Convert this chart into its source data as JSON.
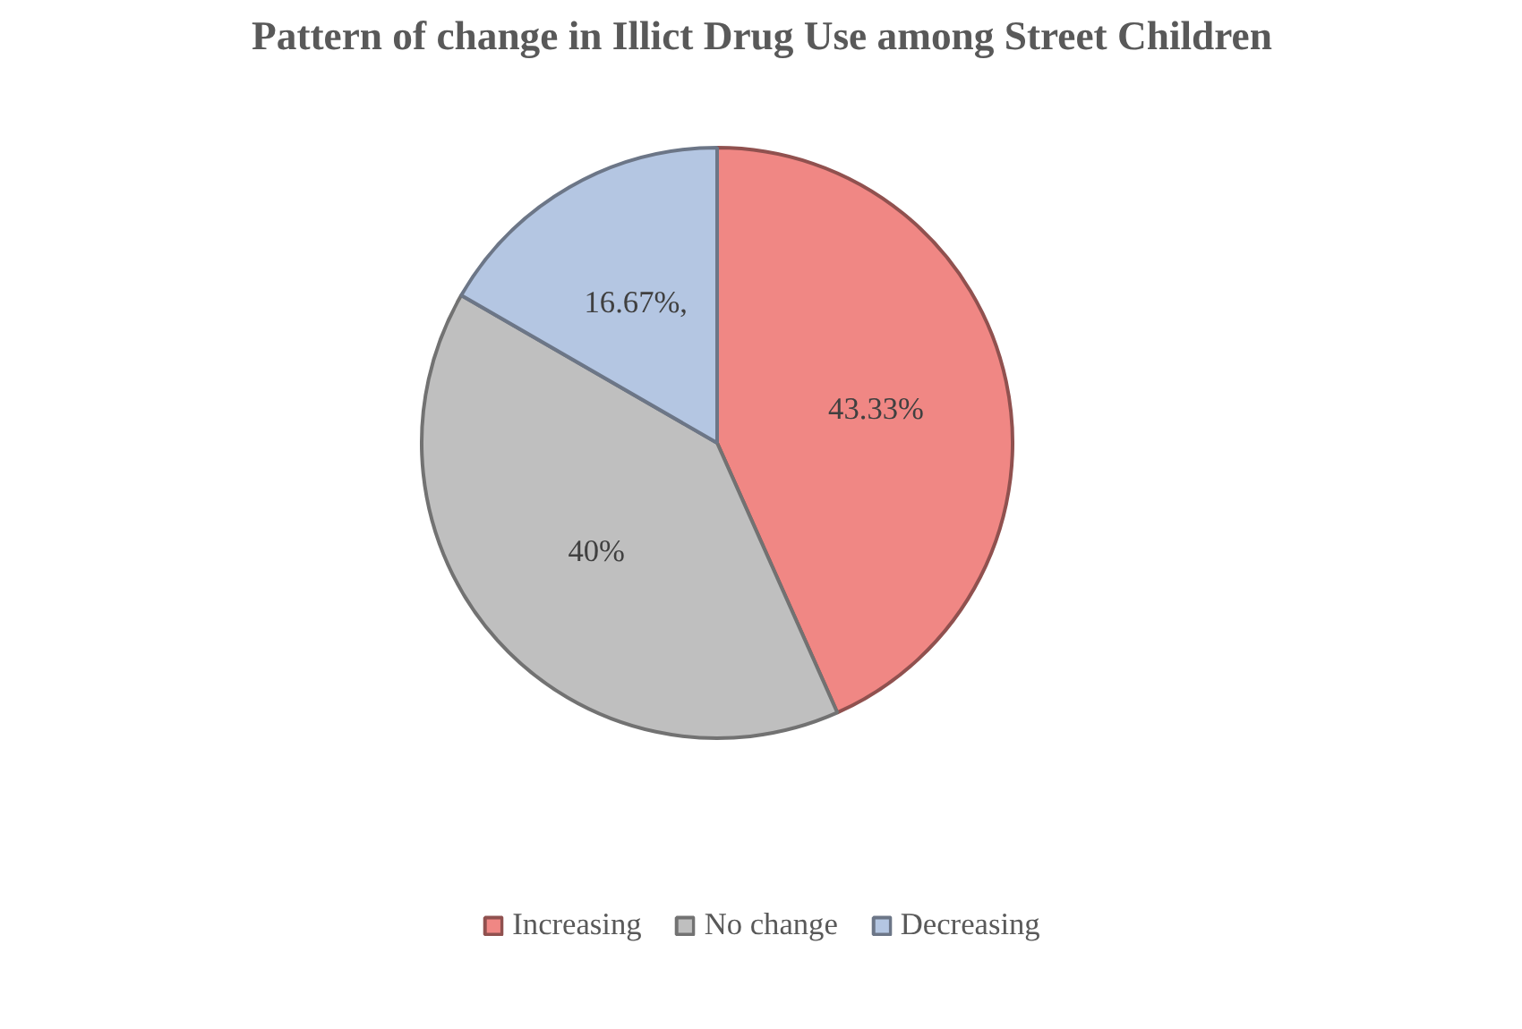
{
  "chart_data": {
    "type": "pie",
    "title": "Pattern of change in Illict Drug Use among Street Children",
    "categories": [
      "Increasing",
      "No change",
      "Decreasing"
    ],
    "values": [
      43.33,
      40,
      16.67
    ],
    "colors": [
      "#f08784",
      "#bfbfbf",
      "#b4c6e2"
    ],
    "value_labels": [
      "43.33%",
      "40%",
      "16.67%,"
    ],
    "legend": "bottom"
  }
}
